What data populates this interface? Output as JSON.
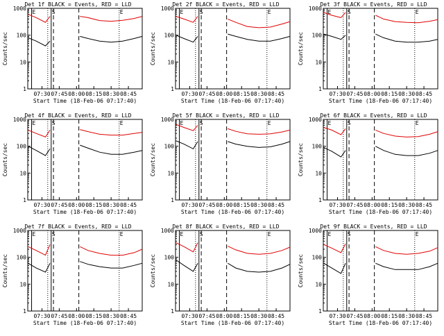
{
  "figure": {
    "xlabel": "Start Time (18-Feb-06 07:17:40)",
    "ylabel": "Counts/sec"
  },
  "colors": {
    "events": "#000000",
    "lld": "#e00000",
    "axes": "#000000"
  },
  "chart_data": {
    "type": "line",
    "y_scale": "log",
    "ylim": [
      1,
      1000
    ],
    "y_ticks": [
      "1",
      "10",
      "100",
      "1000"
    ],
    "x_range": [
      "07:17:40",
      "08:57"
    ],
    "x_ticks": [
      "07:30",
      "07:45",
      "08:00",
      "08:15",
      "08:30",
      "08:45"
    ],
    "markers": [
      {
        "label": "E",
        "time": "07:21",
        "style": "solid"
      },
      {
        "label": "S",
        "time": "07:38",
        "style": "solid"
      },
      {
        "label": "",
        "time": "07:35",
        "style": "dotted"
      },
      {
        "label": "",
        "time": "07:40",
        "style": "dashed"
      },
      {
        "label": "",
        "time": "08:02",
        "style": "dashed"
      },
      {
        "label": "E",
        "time": "08:37",
        "style": "dotted"
      }
    ],
    "panels": [
      {
        "title": "Det 1f BLACK = Events, RED = LLD",
        "series": [
          {
            "name": "Events",
            "color": "#000000",
            "points": [
              [
                "07:18",
                80
              ],
              [
                "07:25",
                60
              ],
              [
                "07:33",
                40
              ],
              [
                "07:37",
                60
              ],
              [
                "08:03",
                90
              ],
              [
                "08:10",
                75
              ],
              [
                "08:20",
                60
              ],
              [
                "08:30",
                55
              ],
              [
                "08:40",
                60
              ],
              [
                "08:50",
                75
              ],
              [
                "08:57",
                90
              ]
            ]
          },
          {
            "name": "LLD",
            "color": "#e00000",
            "points": [
              [
                "07:18",
                600
              ],
              [
                "07:25",
                450
              ],
              [
                "07:33",
                300
              ],
              [
                "07:37",
                500
              ],
              [
                "08:03",
                500
              ],
              [
                "08:10",
                450
              ],
              [
                "08:20",
                350
              ],
              [
                "08:30",
                330
              ],
              [
                "08:40",
                360
              ],
              [
                "08:50",
                420
              ],
              [
                "08:57",
                500
              ]
            ]
          }
        ]
      },
      {
        "title": "Det 2f BLACK = Events, RED = LLD",
        "series": [
          {
            "name": "Events",
            "color": "#000000",
            "points": [
              [
                "07:18",
                100
              ],
              [
                "07:25",
                75
              ],
              [
                "07:33",
                55
              ],
              [
                "07:37",
                90
              ],
              [
                "08:03",
                110
              ],
              [
                "08:10",
                90
              ],
              [
                "08:20",
                70
              ],
              [
                "08:30",
                60
              ],
              [
                "08:40",
                60
              ],
              [
                "08:50",
                75
              ],
              [
                "08:57",
                90
              ]
            ]
          },
          {
            "name": "LLD",
            "color": "#e00000",
            "points": [
              [
                "07:18",
                500
              ],
              [
                "07:25",
                400
              ],
              [
                "07:33",
                300
              ],
              [
                "07:37",
                500
              ],
              [
                "08:03",
                400
              ],
              [
                "08:10",
                300
              ],
              [
                "08:20",
                210
              ],
              [
                "08:30",
                190
              ],
              [
                "08:40",
                200
              ],
              [
                "08:50",
                260
              ],
              [
                "08:57",
                320
              ]
            ]
          }
        ]
      },
      {
        "title": "Det 3f BLACK = Events, RED = LLD",
        "series": [
          {
            "name": "Events",
            "color": "#000000",
            "points": [
              [
                "07:18",
                110
              ],
              [
                "07:25",
                90
              ],
              [
                "07:33",
                70
              ],
              [
                "07:37",
                100
              ],
              [
                "08:03",
                110
              ],
              [
                "08:10",
                80
              ],
              [
                "08:20",
                60
              ],
              [
                "08:30",
                55
              ],
              [
                "08:40",
                55
              ],
              [
                "08:50",
                60
              ],
              [
                "08:57",
                70
              ]
            ]
          },
          {
            "name": "LLD",
            "color": "#e00000",
            "points": [
              [
                "07:18",
                700
              ],
              [
                "07:25",
                550
              ],
              [
                "07:33",
                450
              ],
              [
                "07:37",
                700
              ],
              [
                "08:03",
                550
              ],
              [
                "08:10",
                400
              ],
              [
                "08:20",
                320
              ],
              [
                "08:30",
                300
              ],
              [
                "08:40",
                290
              ],
              [
                "08:50",
                330
              ],
              [
                "08:57",
                380
              ]
            ]
          }
        ]
      },
      {
        "title": "Det 4f BLACK = Events, RED = LLD",
        "series": [
          {
            "name": "Events",
            "color": "#000000",
            "points": [
              [
                "07:18",
                100
              ],
              [
                "07:25",
                70
              ],
              [
                "07:33",
                45
              ],
              [
                "07:37",
                80
              ],
              [
                "08:03",
                110
              ],
              [
                "08:10",
                85
              ],
              [
                "08:20",
                60
              ],
              [
                "08:30",
                50
              ],
              [
                "08:40",
                50
              ],
              [
                "08:50",
                60
              ],
              [
                "08:57",
                70
              ]
            ]
          },
          {
            "name": "LLD",
            "color": "#e00000",
            "points": [
              [
                "07:18",
                400
              ],
              [
                "07:25",
                300
              ],
              [
                "07:33",
                220
              ],
              [
                "07:37",
                400
              ],
              [
                "08:03",
                420
              ],
              [
                "08:10",
                350
              ],
              [
                "08:20",
                280
              ],
              [
                "08:30",
                260
              ],
              [
                "08:40",
                260
              ],
              [
                "08:50",
                300
              ],
              [
                "08:57",
                330
              ]
            ]
          }
        ]
      },
      {
        "title": "Det 5f BLACK = Events, RED = LLD",
        "series": [
          {
            "name": "Events",
            "color": "#000000",
            "points": [
              [
                "07:18",
                160
              ],
              [
                "07:25",
                120
              ],
              [
                "07:33",
                80
              ],
              [
                "07:37",
                150
              ],
              [
                "08:03",
                150
              ],
              [
                "08:10",
                120
              ],
              [
                "08:20",
                100
              ],
              [
                "08:30",
                90
              ],
              [
                "08:40",
                95
              ],
              [
                "08:50",
                120
              ],
              [
                "08:57",
                150
              ]
            ]
          },
          {
            "name": "LLD",
            "color": "#e00000",
            "points": [
              [
                "07:18",
                650
              ],
              [
                "07:25",
                500
              ],
              [
                "07:33",
                380
              ],
              [
                "07:37",
                600
              ],
              [
                "08:03",
                450
              ],
              [
                "08:10",
                360
              ],
              [
                "08:20",
                290
              ],
              [
                "08:30",
                280
              ],
              [
                "08:40",
                290
              ],
              [
                "08:50",
                340
              ],
              [
                "08:57",
                400
              ]
            ]
          }
        ]
      },
      {
        "title": "Det 6f BLACK = Events, RED = LLD",
        "series": [
          {
            "name": "Events",
            "color": "#000000",
            "points": [
              [
                "07:18",
                90
              ],
              [
                "07:25",
                65
              ],
              [
                "07:33",
                40
              ],
              [
                "07:37",
                70
              ],
              [
                "08:03",
                100
              ],
              [
                "08:10",
                70
              ],
              [
                "08:20",
                50
              ],
              [
                "08:30",
                45
              ],
              [
                "08:40",
                45
              ],
              [
                "08:50",
                55
              ],
              [
                "08:57",
                70
              ]
            ]
          },
          {
            "name": "LLD",
            "color": "#e00000",
            "points": [
              [
                "07:18",
                500
              ],
              [
                "07:25",
                400
              ],
              [
                "07:33",
                270
              ],
              [
                "07:37",
                450
              ],
              [
                "08:03",
                400
              ],
              [
                "08:10",
                300
              ],
              [
                "08:20",
                240
              ],
              [
                "08:30",
                220
              ],
              [
                "08:40",
                230
              ],
              [
                "08:50",
                280
              ],
              [
                "08:57",
                350
              ]
            ]
          }
        ]
      },
      {
        "title": "Det 7f BLACK = Events, RED = LLD",
        "series": [
          {
            "name": "Events",
            "color": "#000000",
            "points": [
              [
                "07:18",
                60
              ],
              [
                "07:25",
                40
              ],
              [
                "07:33",
                28
              ],
              [
                "07:37",
                60
              ],
              [
                "08:03",
                70
              ],
              [
                "08:10",
                55
              ],
              [
                "08:20",
                45
              ],
              [
                "08:30",
                40
              ],
              [
                "08:40",
                40
              ],
              [
                "08:50",
                50
              ],
              [
                "08:57",
                60
              ]
            ]
          },
          {
            "name": "LLD",
            "color": "#e00000",
            "points": [
              [
                "07:18",
                250
              ],
              [
                "07:25",
                180
              ],
              [
                "07:33",
                120
              ],
              [
                "07:37",
                300
              ],
              [
                "08:03",
                250
              ],
              [
                "08:10",
                180
              ],
              [
                "08:20",
                140
              ],
              [
                "08:30",
                120
              ],
              [
                "08:40",
                120
              ],
              [
                "08:50",
                150
              ],
              [
                "08:57",
                200
              ]
            ]
          }
        ]
      },
      {
        "title": "Det 8f BLACK = Events, RED = LLD",
        "series": [
          {
            "name": "Events",
            "color": "#000000",
            "points": [
              [
                "07:18",
                80
              ],
              [
                "07:25",
                50
              ],
              [
                "07:33",
                30
              ],
              [
                "07:37",
                60
              ],
              [
                "08:03",
                60
              ],
              [
                "08:10",
                40
              ],
              [
                "08:20",
                30
              ],
              [
                "08:30",
                28
              ],
              [
                "08:40",
                30
              ],
              [
                "08:50",
                40
              ],
              [
                "08:57",
                55
              ]
            ]
          },
          {
            "name": "LLD",
            "color": "#e00000",
            "points": [
              [
                "07:18",
                350
              ],
              [
                "07:25",
                250
              ],
              [
                "07:33",
                160
              ],
              [
                "07:37",
                350
              ],
              [
                "08:03",
                260
              ],
              [
                "08:10",
                190
              ],
              [
                "08:20",
                140
              ],
              [
                "08:30",
                130
              ],
              [
                "08:40",
                140
              ],
              [
                "08:50",
                180
              ],
              [
                "08:57",
                240
              ]
            ]
          }
        ]
      },
      {
        "title": "Det 9f BLACK = Events, RED = LLD",
        "series": [
          {
            "name": "Events",
            "color": "#000000",
            "points": [
              [
                "07:18",
                60
              ],
              [
                "07:25",
                40
              ],
              [
                "07:33",
                25
              ],
              [
                "07:37",
                60
              ],
              [
                "08:03",
                60
              ],
              [
                "08:10",
                45
              ],
              [
                "08:20",
                35
              ],
              [
                "08:30",
                35
              ],
              [
                "08:40",
                35
              ],
              [
                "08:50",
                45
              ],
              [
                "08:57",
                60
              ]
            ]
          },
          {
            "name": "LLD",
            "color": "#e00000",
            "points": [
              [
                "07:18",
                300
              ],
              [
                "07:25",
                220
              ],
              [
                "07:33",
                150
              ],
              [
                "07:37",
                320
              ],
              [
                "08:03",
                250
              ],
              [
                "08:10",
                180
              ],
              [
                "08:20",
                140
              ],
              [
                "08:30",
                130
              ],
              [
                "08:40",
                140
              ],
              [
                "08:50",
                170
              ],
              [
                "08:57",
                230
              ]
            ]
          }
        ]
      }
    ]
  }
}
